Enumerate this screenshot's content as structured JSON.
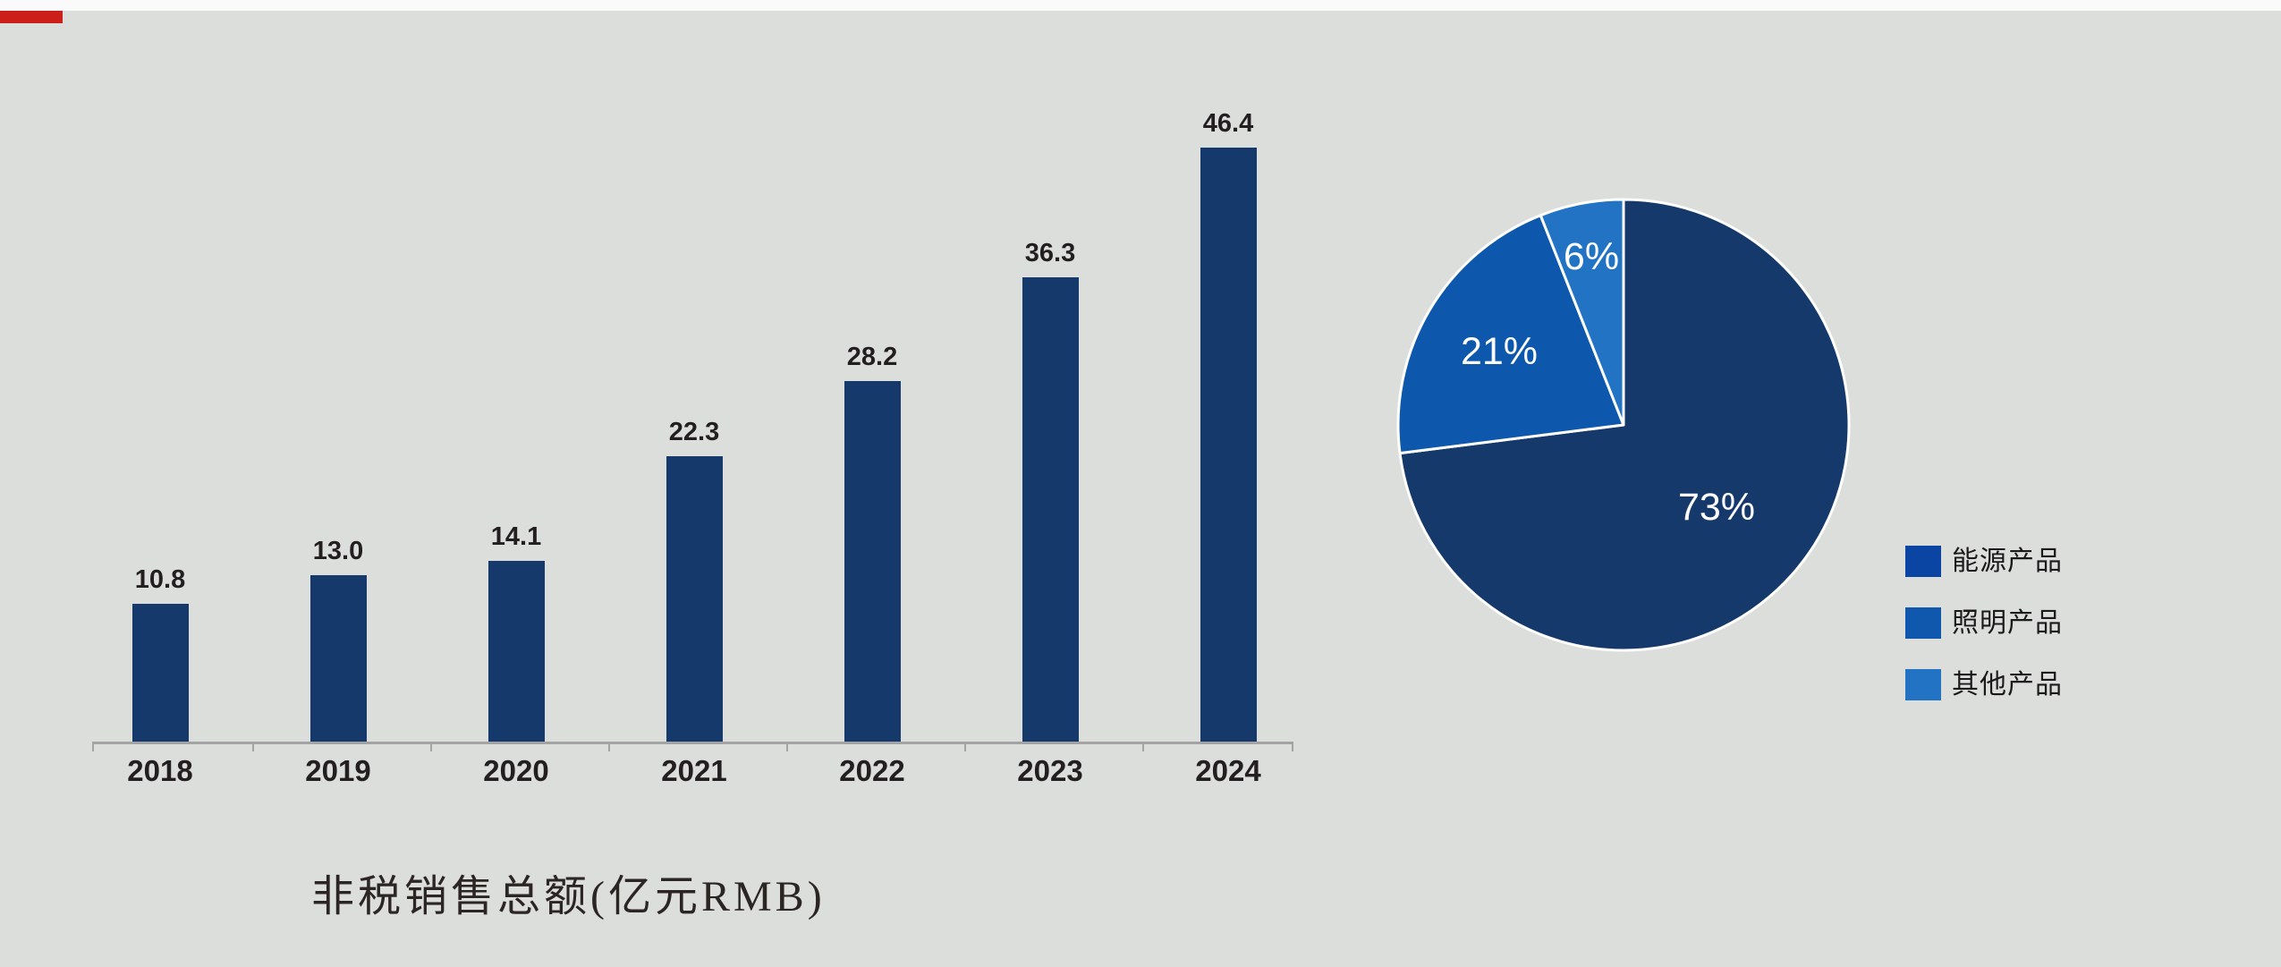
{
  "page": {
    "background_color": "#DCDEDB",
    "top_strip_color": "#FAFAFA",
    "red_mark_color": "#CB1F1A"
  },
  "chart_data": [
    {
      "type": "bar",
      "title": "非税销售总额(亿元RMB)",
      "categories": [
        "2018",
        "2019",
        "2020",
        "2021",
        "2022",
        "2023",
        "2024"
      ],
      "values": [
        10.8,
        13.0,
        14.1,
        22.3,
        28.2,
        36.3,
        46.4
      ],
      "data_labels": [
        "10.8",
        "13.0",
        "14.1",
        "22.3",
        "28.2",
        "36.3",
        "46.4"
      ],
      "xlabel": "",
      "ylabel": "",
      "ylim": [
        0,
        50
      ],
      "grid": false,
      "legend": "none",
      "bar_color": "#15396B",
      "value_label_color": "#231F20",
      "category_label_color": "#231F20",
      "axis_color": "#A3A3A3"
    },
    {
      "type": "pie",
      "start_angle": "12-o-clock, clockwise",
      "slices": [
        {
          "label": "能源产品",
          "value_pct": 73,
          "display": "73%",
          "color": "#15396B",
          "legend_color": "#0A45A3"
        },
        {
          "label": "照明产品",
          "value_pct": 21,
          "display": "21%",
          "color": "#0D57AC",
          "legend_color": "#1058AD"
        },
        {
          "label": "其他产品",
          "value_pct": 6,
          "display": "6%",
          "color": "#2273C4",
          "legend_color": "#2273C4"
        }
      ],
      "slice_border_color": "#FFFFFF",
      "label_color": "#FFFFFF",
      "legend_position": "right",
      "legend_text_color": "#1A1A1A"
    }
  ]
}
